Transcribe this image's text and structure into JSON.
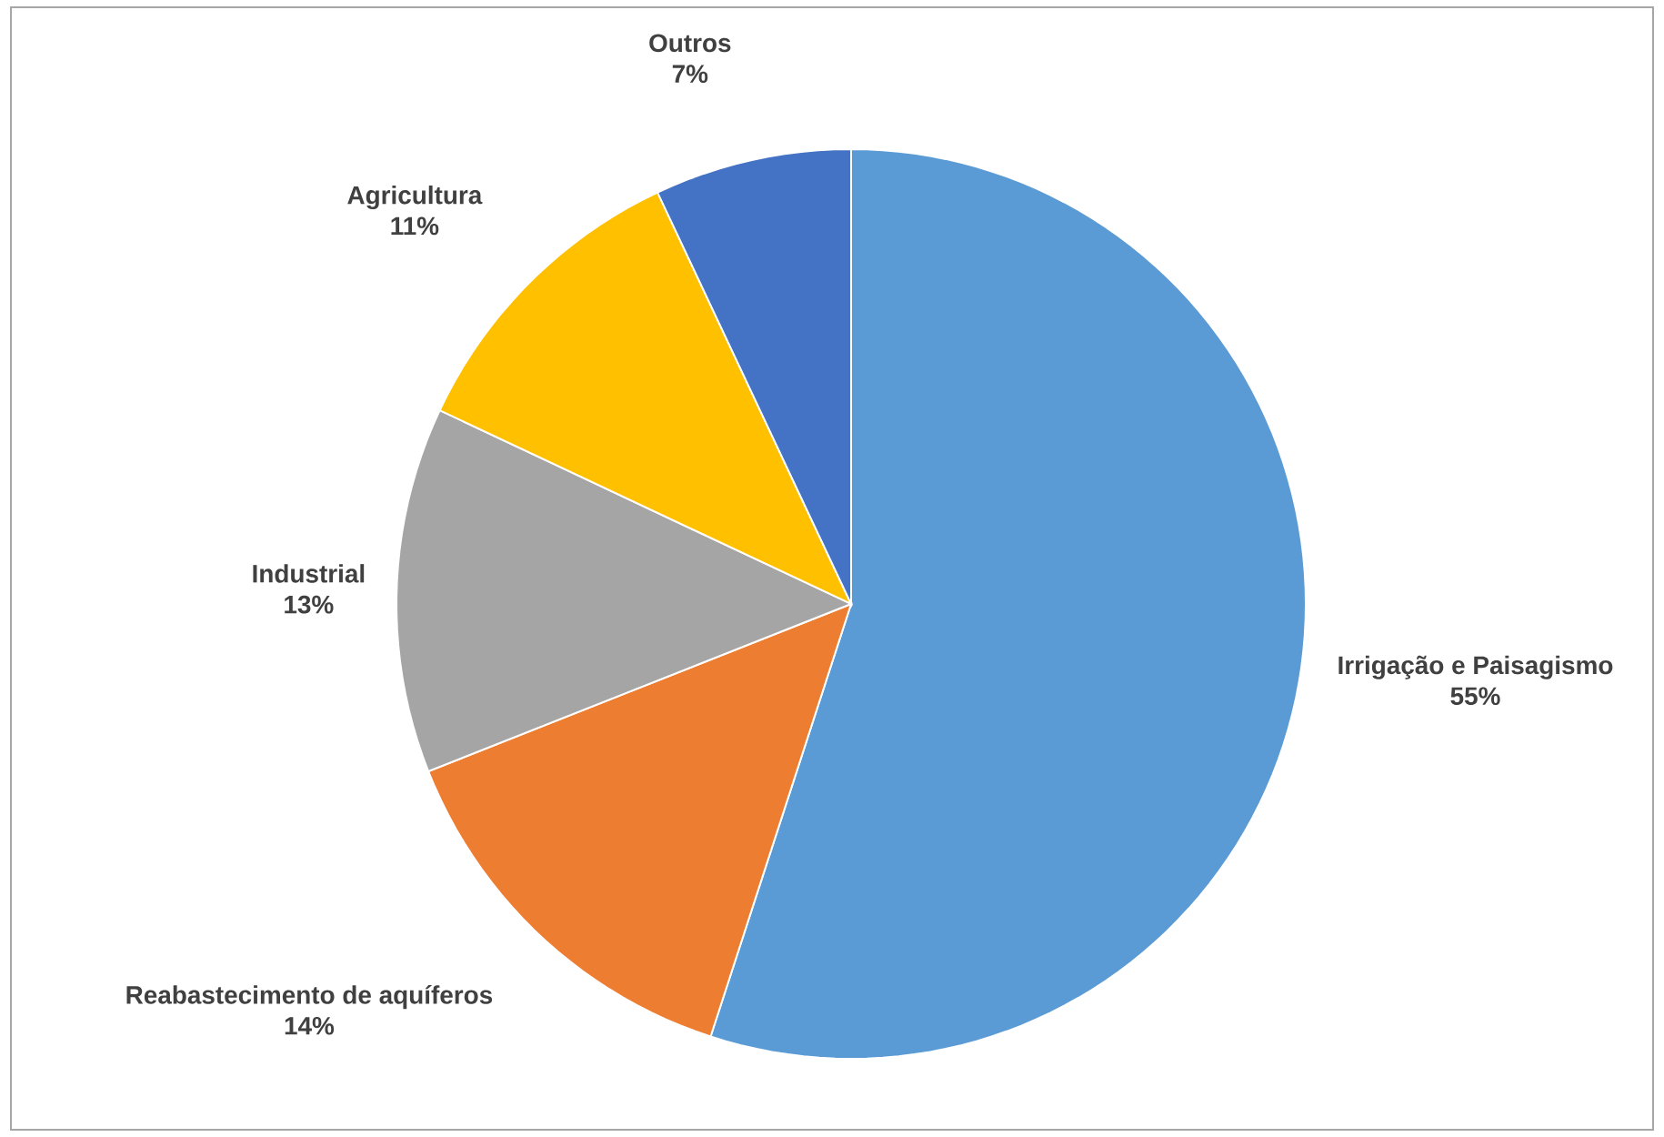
{
  "chart_data": {
    "type": "pie",
    "categories": [
      "Irrigação e Paisagismo",
      "Reabastecimento de aquíferos",
      "Industrial",
      "Agricultura",
      "Outros"
    ],
    "values": [
      55,
      14,
      13,
      11,
      7
    ],
    "value_labels": [
      "55%",
      "14%",
      "13%",
      "11%",
      "7%"
    ],
    "colors": [
      "#5b9bd5",
      "#ed7d31",
      "#a5a5a5",
      "#ffc000",
      "#4472c4"
    ]
  }
}
